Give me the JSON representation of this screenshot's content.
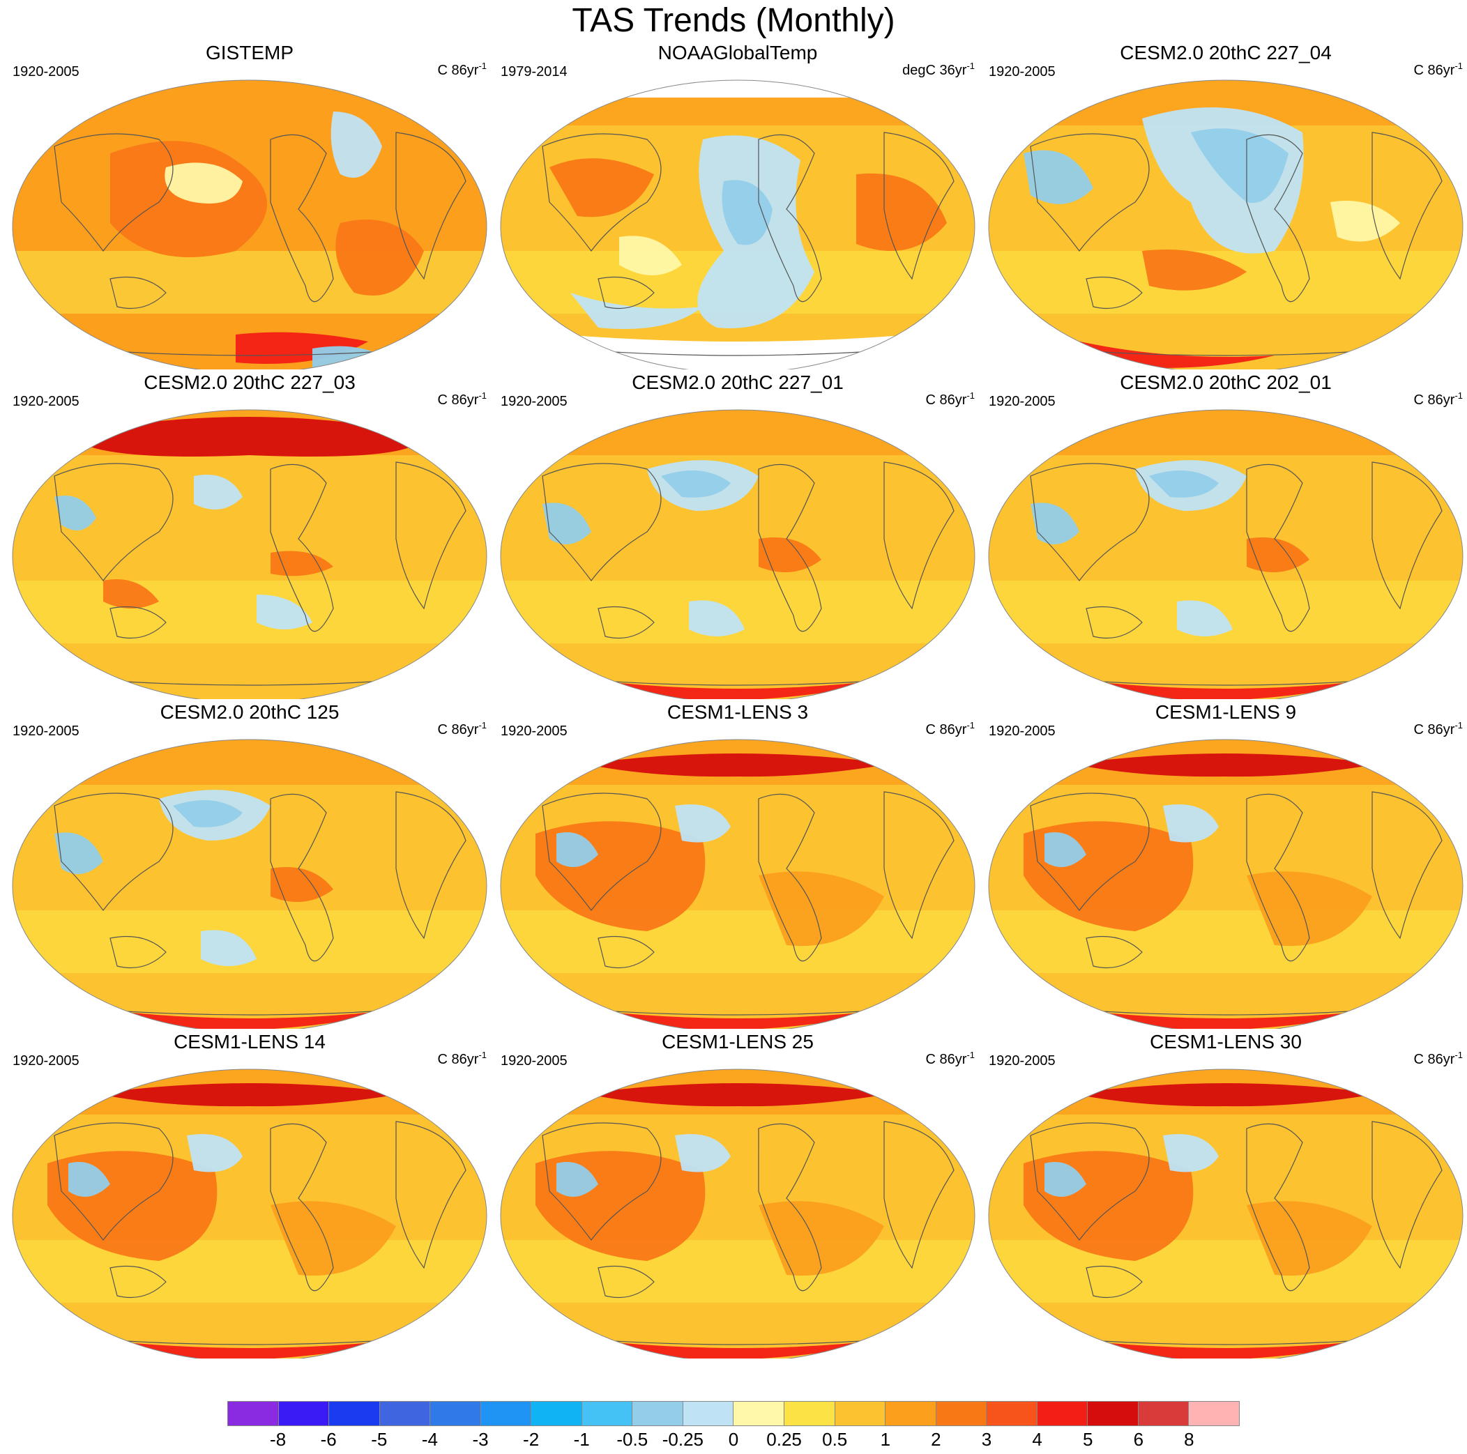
{
  "figure": {
    "title": "TAS Trends (Monthly)"
  },
  "panels": [
    {
      "title": "GISTEMP",
      "period": "1920-2005",
      "units_base": "C 86yr",
      "units_exp": "-1",
      "pattern": "obs_gis"
    },
    {
      "title": "NOAAGlobalTemp",
      "period": "1979-2014",
      "units_base": "degC 36yr",
      "units_exp": "-1",
      "pattern": "obs_noaa"
    },
    {
      "title": "CESM2.0 20thC 227_04",
      "period": "1920-2005",
      "units_base": "C 86yr",
      "units_exp": "-1",
      "pattern": "cool_pacific"
    },
    {
      "title": "CESM2.0 20thC 227_03",
      "period": "1920-2005",
      "units_base": "C 86yr",
      "units_exp": "-1",
      "pattern": "warm_arctic"
    },
    {
      "title": "CESM2.0 20thC 227_01",
      "period": "1920-2005",
      "units_base": "C 86yr",
      "units_exp": "-1",
      "pattern": "npac_cool"
    },
    {
      "title": "CESM2.0 20thC 202_01",
      "period": "1920-2005",
      "units_base": "C 86yr",
      "units_exp": "-1",
      "pattern": "npac_cool"
    },
    {
      "title": "CESM2.0 20thC 125",
      "period": "1920-2005",
      "units_base": "C 86yr",
      "units_exp": "-1",
      "pattern": "npac_cool"
    },
    {
      "title": "CESM1-LENS 3",
      "period": "1920-2005",
      "units_base": "C 86yr",
      "units_exp": "-1",
      "pattern": "lens"
    },
    {
      "title": "CESM1-LENS 9",
      "period": "1920-2005",
      "units_base": "C 86yr",
      "units_exp": "-1",
      "pattern": "lens"
    },
    {
      "title": "CESM1-LENS 14",
      "period": "1920-2005",
      "units_base": "C 86yr",
      "units_exp": "-1",
      "pattern": "lens"
    },
    {
      "title": "CESM1-LENS 25",
      "period": "1920-2005",
      "units_base": "C 86yr",
      "units_exp": "-1",
      "pattern": "lens"
    },
    {
      "title": "CESM1-LENS 30",
      "period": "1920-2005",
      "units_base": "C 86yr",
      "units_exp": "-1",
      "pattern": "lens"
    }
  ],
  "colorbar": {
    "colors": [
      "#8a2be2",
      "#3b1bf5",
      "#1a3cf0",
      "#3f66e0",
      "#2f7ae8",
      "#1f94f5",
      "#10b4f5",
      "#45c2f5",
      "#92cdea",
      "#bfe3f5",
      "#fff8a8",
      "#fde245",
      "#fcc22f",
      "#fb9f1d",
      "#f97816",
      "#f7541b",
      "#f31f15",
      "#d60d0d",
      "#d93b3b",
      "#ffb3b3"
    ],
    "labels": [
      "-8",
      "-6",
      "-5",
      "-4",
      "-3",
      "-2",
      "-1",
      "-0.5",
      "-0.25",
      "0",
      "0.25",
      "0.5",
      "1",
      "2",
      "3",
      "4",
      "5",
      "6",
      "8"
    ]
  }
}
